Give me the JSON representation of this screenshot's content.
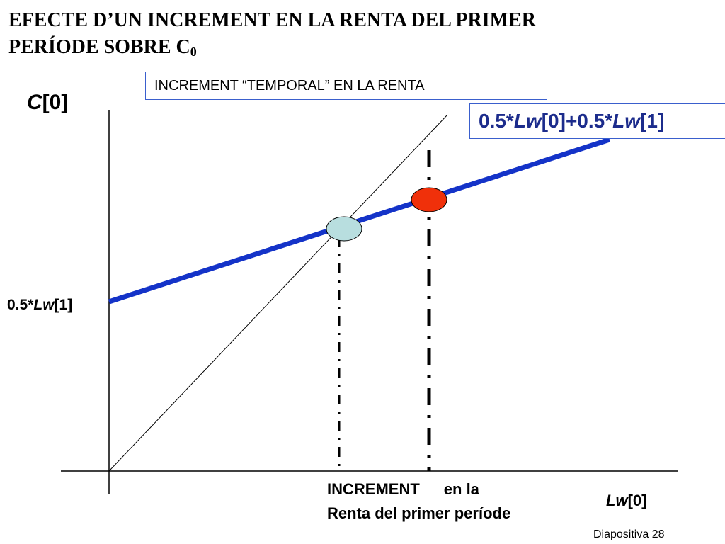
{
  "title": {
    "line1": "EFECTE D’UN INCREMENT EN LA RENTA DEL PRIMER",
    "line2_main": "PERÍODE SOBRE C",
    "line2_sub": "0"
  },
  "box_label": "INCREMENT “TEMPORAL” EN LA RENTA",
  "formula": {
    "p1": "0.5*",
    "v1": "Lw",
    "p2": "[0]+0.5*",
    "v2": "Lw",
    "p3": "[1]"
  },
  "y_axis": {
    "var": "C",
    "index": "[0]"
  },
  "intercept_label": {
    "prefix": "0.5*",
    "var": "Lw",
    "index": "[1]"
  },
  "x_axis": {
    "var": "Lw",
    "index": "[0]"
  },
  "note": {
    "word1": "INCREMENT",
    "word2": "en la",
    "line2": "Renta del primer període"
  },
  "slide_number": "Diapositiva 28",
  "colors": {
    "consumption_line": "#1433c8",
    "initial_point": "#b8dedf",
    "new_point": "#f0300a",
    "formula_text": "#1c2c8c"
  }
}
